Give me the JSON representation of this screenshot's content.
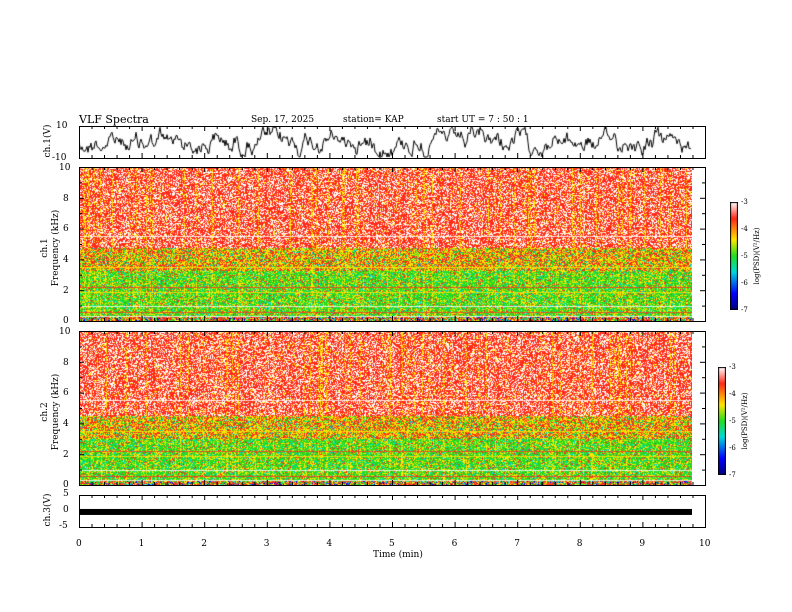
{
  "header": {
    "title": "VLF Spectra",
    "date": "Sep. 17, 2025",
    "station": "station= KAP",
    "start": "start  UT =   7 : 50 : 1"
  },
  "chart_data": [
    {
      "type": "line",
      "name": "ch1-waveform",
      "ylabel": "ch.1(V)",
      "ylim": [
        -10,
        10
      ],
      "yticks": [
        "10",
        "-10"
      ],
      "xlim": [
        0,
        10
      ]
    },
    {
      "type": "heatmap",
      "name": "ch1-spectrogram",
      "ylabel_line1": "ch.1",
      "ylabel_line2": "Frequency  (kHz)",
      "ylim": [
        0,
        10
      ],
      "yticks": [
        "0",
        "2",
        "4",
        "6",
        "8",
        "10"
      ],
      "xlim": [
        0,
        9.8
      ],
      "bands": [
        {
          "from": 0.0,
          "to": 0.3,
          "level": "mixed"
        },
        {
          "from": 0.3,
          "to": 3.3,
          "level": "green"
        },
        {
          "from": 3.3,
          "to": 4.8,
          "level": "yellow"
        },
        {
          "from": 4.8,
          "to": 10.0,
          "level": "red"
        }
      ],
      "colorbar": {
        "label": "log(PSD)(V²/Hz)",
        "ticks": [
          "-3",
          "-4",
          "-5",
          "-6",
          "-7"
        ],
        "range": [
          -7,
          -3
        ]
      }
    },
    {
      "type": "heatmap",
      "name": "ch2-spectrogram",
      "ylabel_line1": "ch.2",
      "ylabel_line2": "Frequency  (kHz)",
      "ylim": [
        0,
        10
      ],
      "yticks": [
        "0",
        "2",
        "4",
        "6",
        "8",
        "10"
      ],
      "xlim": [
        0,
        9.8
      ],
      "bands": [
        {
          "from": 0.0,
          "to": 0.3,
          "level": "mixed"
        },
        {
          "from": 0.3,
          "to": 3.0,
          "level": "green"
        },
        {
          "from": 3.0,
          "to": 4.5,
          "level": "yellow"
        },
        {
          "from": 4.5,
          "to": 10.0,
          "level": "red"
        }
      ],
      "colorbar": {
        "label": "log(PSD)(V²/Hz)",
        "ticks": [
          "-3",
          "-4",
          "-5",
          "-6",
          "-7"
        ],
        "range": [
          -7,
          -3
        ]
      }
    },
    {
      "type": "line",
      "name": "ch3-waveform",
      "ylabel": "ch.3(V)",
      "ylim": [
        -5,
        5
      ],
      "yticks": [
        "5",
        "0",
        "-5"
      ],
      "level": -0.3,
      "xlim": [
        0,
        10
      ]
    }
  ],
  "xaxis": {
    "label": "Time  (min)",
    "ticks": [
      "0",
      "1",
      "2",
      "3",
      "4",
      "5",
      "6",
      "7",
      "8",
      "9",
      "10"
    ],
    "range": [
      0,
      10
    ]
  },
  "colors": {
    "red": "#ff2a1a",
    "white": "#ffffff",
    "yellow": "#ffe600",
    "green": "#22dd22",
    "cyan": "#00d8d8",
    "blue": "#0000ff",
    "dark": "#000080"
  }
}
